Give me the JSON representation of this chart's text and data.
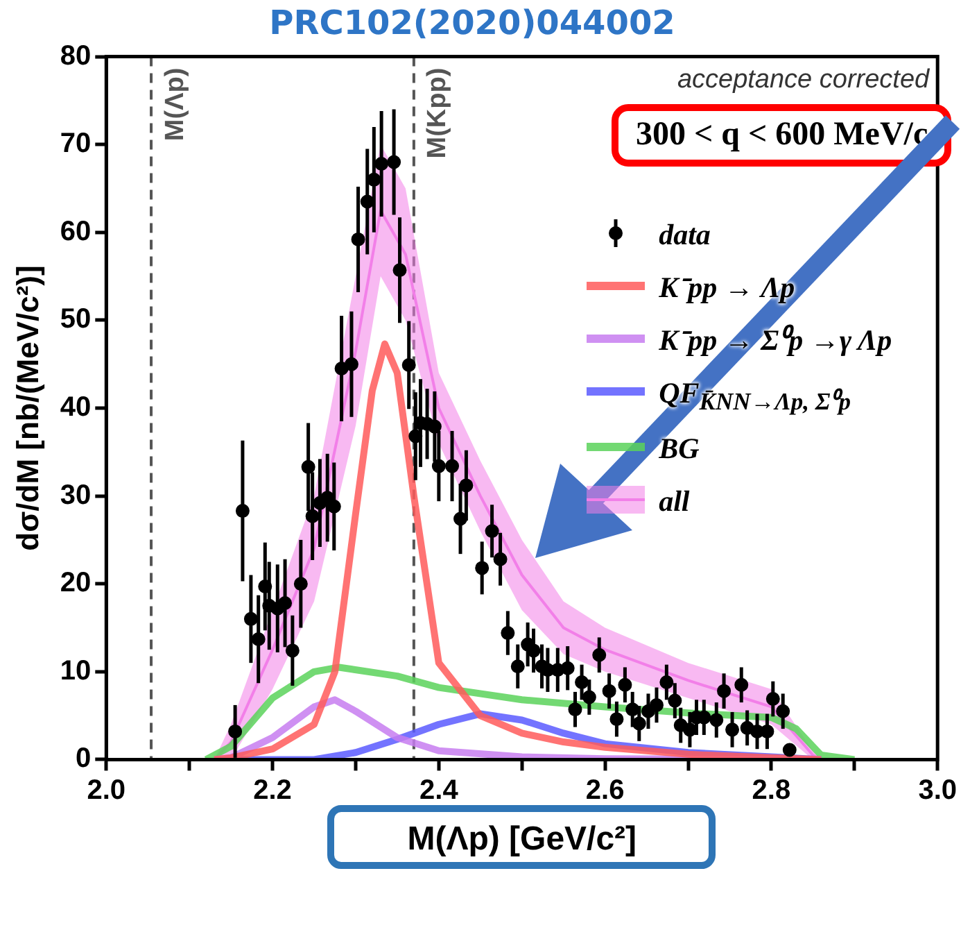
{
  "chart_data": {
    "type": "line",
    "title": "PRC102(2020)044002",
    "xlabel": "M(Λp) [GeV/c²]",
    "ylabel": "dσ/dM [nb/(MeV/c²)]",
    "xlim": [
      2.0,
      3.0
    ],
    "xticks": [
      {
        "value": 2.0,
        "label": "2.0"
      },
      {
        "value": 2.1,
        "label": null
      },
      {
        "value": 2.2,
        "label": "2.2"
      },
      {
        "value": 2.3,
        "label": null
      },
      {
        "value": 2.4,
        "label": "2.4"
      },
      {
        "value": 2.5,
        "label": null
      },
      {
        "value": 2.6,
        "label": "2.6"
      },
      {
        "value": 2.7,
        "label": null
      },
      {
        "value": 2.8,
        "label": "2.8"
      },
      {
        "value": 2.9,
        "label": null
      },
      {
        "value": 3.0,
        "label": "3.0"
      }
    ],
    "ylim": [
      0,
      80
    ],
    "yticks": [
      0,
      10,
      20,
      30,
      40,
      50,
      60,
      70,
      80
    ],
    "grid": false,
    "legend": "right",
    "annotations": [
      "acceptance corrected",
      "300 < q < 600 MeV/c"
    ],
    "ref_lines": [
      {
        "axis": "x",
        "value": 2.054,
        "label": "M(Λp)",
        "color": "#555555",
        "line_style": "dashed"
      },
      {
        "axis": "x",
        "value": 2.37,
        "label": "M(Kpp)",
        "color": "#555555",
        "line_style": "dashed"
      }
    ],
    "series": [
      {
        "name": "data",
        "type": "scatter",
        "marker": "circle",
        "color": "#000000",
        "x": [
          2.155,
          2.164,
          2.174,
          2.183,
          2.191,
          2.196,
          2.206,
          2.215,
          2.224,
          2.234,
          2.243,
          2.248,
          2.257,
          2.266,
          2.274,
          2.283,
          2.295,
          2.303,
          2.314,
          2.322,
          2.331,
          2.346,
          2.353,
          2.364,
          2.372,
          2.378,
          2.386,
          2.395,
          2.4,
          2.416,
          2.426,
          2.433,
          2.452,
          2.464,
          2.474,
          2.483,
          2.495,
          2.507,
          2.514,
          2.524,
          2.531,
          2.543,
          2.555,
          2.564,
          2.572,
          2.581,
          2.593,
          2.605,
          2.614,
          2.624,
          2.633,
          2.641,
          2.652,
          2.662,
          2.674,
          2.684,
          2.691,
          2.702,
          2.71,
          2.719,
          2.734,
          2.743,
          2.753,
          2.764,
          2.771,
          2.783,
          2.795,
          2.802,
          2.814,
          2.822
        ],
        "values": [
          3.2,
          28.3,
          16,
          13.7,
          19.7,
          17.5,
          17.2,
          17.8,
          12.4,
          20,
          33.3,
          27.7,
          29.2,
          29.8,
          28.8,
          44.5,
          45,
          59.2,
          63.5,
          66,
          67.8,
          68,
          55.7,
          44.9,
          36.8,
          38.3,
          38.2,
          37.9,
          33.4,
          33.4,
          27.4,
          31.2,
          21.8,
          26,
          22.8,
          14.4,
          10.6,
          13.1,
          12.4,
          10.6,
          10.2,
          10.2,
          10.4,
          5.7,
          8.8,
          7.1,
          11.9,
          7.8,
          4.6,
          8.5,
          5.7,
          4.1,
          5.5,
          6.2,
          8.8,
          6.7,
          3.9,
          3.4,
          4.8,
          4.8,
          4.5,
          7.8,
          3.4,
          8.5,
          3.6,
          3.2,
          3.2,
          6.9,
          5.5,
          1.1
        ],
        "errors": [
          3,
          8,
          5,
          5,
          5,
          5,
          5,
          5,
          4,
          5,
          5,
          5,
          5,
          5,
          5,
          6,
          6,
          6,
          6,
          6,
          6,
          6,
          6,
          5,
          5,
          5,
          4,
          4,
          4,
          4,
          4,
          4,
          3,
          3,
          3,
          2.5,
          2.5,
          2.5,
          2.5,
          2.5,
          2.5,
          2.5,
          2.5,
          2,
          2,
          2,
          2,
          2,
          2,
          2,
          2,
          2,
          2,
          2,
          2,
          2,
          2,
          2,
          2,
          2,
          2,
          2,
          2,
          2,
          2,
          2,
          2,
          2,
          2,
          null
        ]
      },
      {
        "name": "K⁻pp → Λp",
        "type": "line",
        "color": "#ff5a5a",
        "x": [
          2.13,
          2.15,
          2.2,
          2.25,
          2.275,
          2.3,
          2.32,
          2.335,
          2.35,
          2.37,
          2.4,
          2.45,
          2.5,
          2.55,
          2.6,
          2.7,
          2.8,
          2.86
        ],
        "values": [
          0,
          0.2,
          1.2,
          4,
          10,
          28,
          42,
          47.3,
          44,
          30,
          11,
          5,
          3,
          2,
          1.4,
          0.6,
          0.2,
          0
        ]
      },
      {
        "name": "K⁻pp → Σ⁰p →γ Λp",
        "type": "line",
        "color": "#c77cf0",
        "x": [
          2.13,
          2.15,
          2.2,
          2.25,
          2.275,
          2.3,
          2.35,
          2.4,
          2.5,
          2.6,
          2.86
        ],
        "values": [
          0,
          0.2,
          2.5,
          6,
          6.8,
          5.5,
          2.5,
          1,
          0.3,
          0.1,
          0
        ]
      },
      {
        "name": "QF$_{K̄NN→Λp, Σ⁰p}$",
        "type": "line",
        "color": "#5a5aff",
        "x": [
          2.13,
          2.25,
          2.3,
          2.35,
          2.4,
          2.45,
          2.5,
          2.55,
          2.6,
          2.7,
          2.8,
          2.86
        ],
        "values": [
          0,
          0,
          0.8,
          2.3,
          4,
          5.2,
          4.5,
          3,
          1.8,
          0.8,
          0.3,
          0
        ]
      },
      {
        "name": "BG",
        "type": "line",
        "color": "#5ad25a",
        "x": [
          2.12,
          2.15,
          2.2,
          2.25,
          2.28,
          2.35,
          2.4,
          2.5,
          2.6,
          2.7,
          2.8,
          2.83,
          2.86,
          2.9
        ],
        "values": [
          0,
          1.5,
          7,
          10,
          10.5,
          9.5,
          8.2,
          6.8,
          6,
          5.3,
          4.8,
          3.5,
          0.5,
          0
        ]
      },
      {
        "name": "all",
        "type": "line",
        "color": "#f27fe8",
        "x": [
          2.13,
          2.15,
          2.2,
          2.25,
          2.3,
          2.33,
          2.36,
          2.4,
          2.45,
          2.5,
          2.55,
          2.6,
          2.7,
          2.8,
          2.85,
          2.86
        ],
        "values": [
          0,
          2,
          12.5,
          24,
          46.5,
          62.5,
          57.5,
          40,
          30,
          21,
          15,
          12.5,
          9,
          6,
          0.5,
          0
        ],
        "lower": [
          0,
          0,
          8,
          18,
          38,
          55,
          50,
          36,
          26,
          17,
          12,
          10,
          7,
          4,
          0,
          0
        ],
        "upper": [
          0,
          4,
          17,
          30,
          55,
          70,
          65,
          44,
          34,
          25,
          18,
          15,
          11,
          8,
          1,
          0
        ]
      }
    ]
  }
}
